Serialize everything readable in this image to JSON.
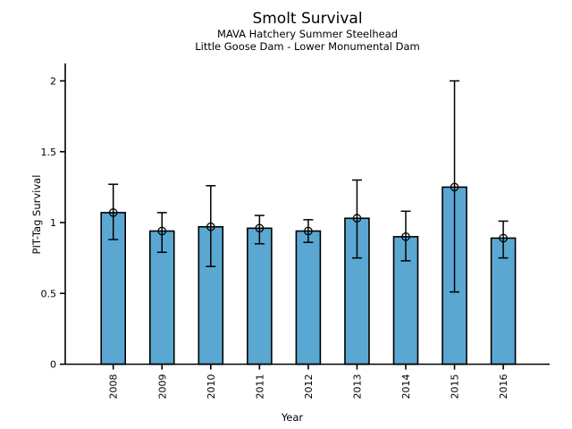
{
  "title": "Smolt Survival",
  "subtitle1": "MAVA Hatchery Summer Steelhead",
  "subtitle2": "Little Goose Dam - Lower Monumental Dam",
  "chart_data": {
    "type": "bar",
    "title": "Smolt Survival",
    "subtitles": [
      "MAVA Hatchery Summer Steelhead",
      "Little Goose Dam - Lower Monumental Dam"
    ],
    "xlabel": "Year",
    "ylabel": "PIT-Tag Survival",
    "categories": [
      "2008",
      "2009",
      "2010",
      "2011",
      "2012",
      "2013",
      "2014",
      "2015",
      "2016"
    ],
    "series": [
      {
        "name": "PIT-Tag Survival",
        "values": [
          1.07,
          0.94,
          0.97,
          0.96,
          0.94,
          1.03,
          0.9,
          1.25,
          0.89
        ]
      }
    ],
    "error_bars": {
      "lower": [
        0.88,
        0.79,
        0.69,
        0.85,
        0.86,
        0.75,
        0.73,
        0.51,
        0.75
      ],
      "upper": [
        1.27,
        1.07,
        1.26,
        1.05,
        1.02,
        1.3,
        1.08,
        2.0,
        1.01
      ]
    },
    "yticks": [
      0,
      0.5,
      1,
      1.5,
      2
    ],
    "ytick_labels": [
      "0",
      "0.5",
      "1",
      "1.5",
      "2"
    ],
    "ylim": [
      0,
      2.12
    ],
    "xtick_label_rotation_deg": 90,
    "grid": false,
    "legend": false,
    "background_color": "#ffffff",
    "bar_color": "#5aa8d2",
    "bar_edge_color": "#000000",
    "error_bar_color": "#000000",
    "marker": "open-circle"
  }
}
